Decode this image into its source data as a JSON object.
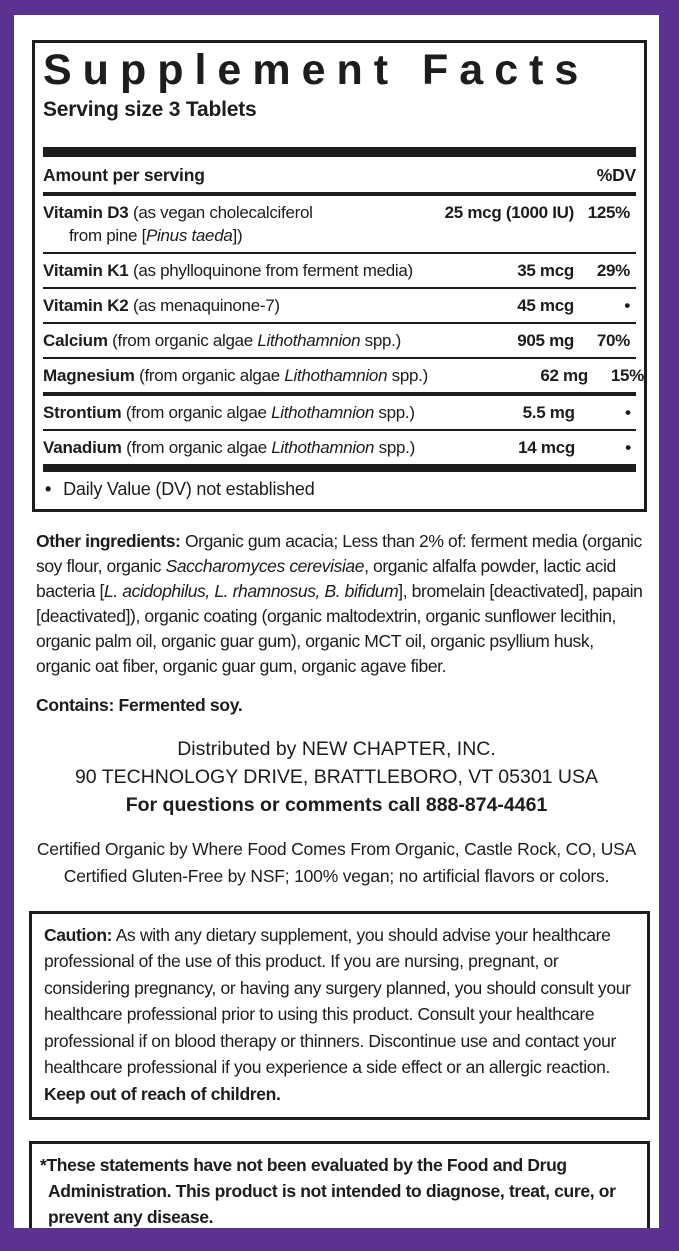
{
  "colors": {
    "frame_purple": "#5b3191",
    "ink_black": "#1e1c1d",
    "background_white": "#ffffff"
  },
  "panel": {
    "title": "Supplement Facts",
    "serving_size": "Serving size 3 Tablets",
    "table": {
      "amount_header": "Amount per serving",
      "dv_header": "%DV",
      "rows": [
        {
          "name": "Vitamin D3",
          "desc_pre": " (as vegan cholecalciferol",
          "line2_pre": "from pine [",
          "line2_italic": "Pinus taeda",
          "line2_post": "])",
          "amount": "25 mcg (1000 IU)",
          "dv": "125%"
        },
        {
          "name": "Vitamin K1",
          "desc_pre": " (as phylloquinone from ferment media)",
          "amount": "35 mcg",
          "dv": "29%"
        },
        {
          "name": "Vitamin K2",
          "desc_pre": " (as menaquinone-7)",
          "amount": "45 mcg",
          "dv": "•"
        },
        {
          "name": "Calcium",
          "desc_pre": " (from organic algae ",
          "desc_italic": "Lithothamnion",
          "desc_post": " spp.)",
          "amount": "905 mg",
          "dv": "70%"
        },
        {
          "name": "Magnesium",
          "desc_pre": " (from organic algae ",
          "desc_italic": "Lithothamnion",
          "desc_post": " spp.)",
          "amount": "62 mg",
          "dv": "15%"
        },
        {
          "name": "Strontium",
          "desc_pre": " (from organic algae ",
          "desc_italic": "Lithothamnion",
          "desc_post": " spp.)",
          "amount": "5.5 mg",
          "dv": "•"
        },
        {
          "name": "Vanadium",
          "desc_pre": " (from organic algae ",
          "desc_italic": "Lithothamnion",
          "desc_post": " spp.)",
          "amount": "14 mcg",
          "dv": "•"
        }
      ],
      "footnote_bullet": "•",
      "footnote": "Daily Value (DV) not established"
    }
  },
  "sections": {
    "other_ingredients": {
      "label": "Other ingredients:",
      "seg1": " Organic gum acacia; Less than 2% of: ferment media (organic soy flour, organic ",
      "italic1": "Saccharomyces cerevisiae",
      "seg2": ", organic alfalfa powder, lactic acid bacteria [",
      "italic2": "L. acidophilus, L. rhamnosus, B. bifidum",
      "seg3": "], bromelain [deactivated], papain [deactivated]), organic coating (organic maltodextrin, organic sunflower lecithin, organic palm oil, organic guar gum), organic MCT oil, organic psyllium husk, organic oat fiber, organic guar gum, organic agave fiber."
    },
    "contains": {
      "label": "Contains:",
      "text": " Fermented soy."
    },
    "distribution": {
      "line1": "Distributed by NEW CHAPTER, INC.",
      "line2": "90 TECHNOLOGY DRIVE, BRATTLEBORO, VT 05301 USA",
      "line3": "For questions or comments call 888-874-4461"
    },
    "certifications": {
      "line1": "Certified Organic by Where Food Comes From Organic, Castle Rock, CO, USA",
      "line2": "Certified Gluten-Free by NSF; 100% vegan; no artificial flavors or colors."
    },
    "caution": {
      "label": "Caution:",
      "body": " As with any dietary supplement, you should advise your healthcare professional of the use of this product. If you are nursing, pregnant, or considering pregnancy, or having any surgery planned, you should consult your healthcare professional prior to using this product. Consult your healthcare professional if on blood therapy or thinners. Discontinue use and contact your healthcare professional if you experience a side effect or an allergic reaction. ",
      "emphasis": "Keep out of reach of children."
    },
    "disclaimer": {
      "text": "*These statements have not been evaluated by the Food and Drug Administration. This product is not intended to diagnose, treat, cure, or prevent any disease."
    }
  }
}
